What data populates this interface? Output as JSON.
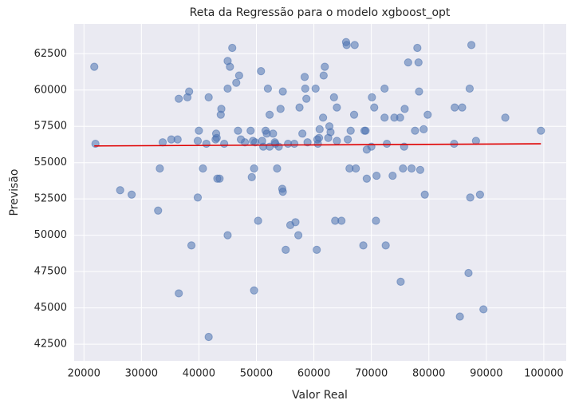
{
  "chart_data": {
    "type": "scatter",
    "title": "Reta da Regressão para o modelo xgboost_opt",
    "x_label": "Valor Real",
    "y_label": "Previsão",
    "color": "#4c72b0",
    "alpha": 0.55,
    "grid": true,
    "xlim": [
      18300,
      103900
    ],
    "ylim": [
      41350,
      64550
    ],
    "xticks": [
      20000,
      30000,
      40000,
      50000,
      60000,
      70000,
      80000,
      90000,
      100000
    ],
    "yticks": [
      42500,
      45000,
      47500,
      50000,
      52500,
      55000,
      57500,
      60000,
      62500
    ],
    "x": [
      21800,
      22000,
      26300,
      28300,
      32900,
      33200,
      33700,
      35200,
      36300,
      36500,
      36500,
      38000,
      38300,
      38700,
      39800,
      39800,
      40000,
      40700,
      41300,
      41700,
      41700,
      42900,
      43000,
      43100,
      43200,
      43600,
      43900,
      43800,
      44400,
      45000,
      45000,
      45000,
      45400,
      45800,
      46500,
      46800,
      47000,
      47300,
      48000,
      49000,
      49200,
      49400,
      49600,
      49600,
      49800,
      50300,
      50800,
      51000,
      51200,
      51600,
      51800,
      52000,
      52300,
      52300,
      52900,
      53200,
      53300,
      53600,
      53900,
      54200,
      54500,
      54600,
      54600,
      55100,
      55500,
      55900,
      56600,
      56800,
      57300,
      57500,
      58000,
      58400,
      58500,
      58700,
      58900,
      60300,
      60500,
      60600,
      60700,
      60900,
      61000,
      61600,
      61700,
      61900,
      62500,
      62700,
      62900,
      63500,
      63700,
      64000,
      64000,
      64800,
      65600,
      65700,
      65900,
      66200,
      66400,
      67100,
      67000,
      67300,
      68600,
      68800,
      69000,
      69200,
      69200,
      70000,
      70100,
      70500,
      70800,
      70900,
      72300,
      72300,
      72500,
      72700,
      73700,
      74000,
      75000,
      75100,
      75500,
      75700,
      75800,
      76400,
      77000,
      77600,
      78000,
      78200,
      78300,
      78500,
      79100,
      79300,
      79800,
      84400,
      84500,
      85400,
      85800,
      86900,
      87100,
      87200,
      87400,
      88200,
      88900,
      89500,
      93300,
      99500
    ],
    "values": [
      61600,
      56300,
      53100,
      52800,
      51700,
      54600,
      56400,
      56600,
      56600,
      46000,
      59400,
      59500,
      59900,
      49300,
      52600,
      56500,
      57200,
      54600,
      56300,
      59500,
      43000,
      56600,
      57000,
      56700,
      53900,
      53900,
      58700,
      58300,
      56300,
      62000,
      60100,
      50000,
      61600,
      62900,
      60500,
      57200,
      61000,
      56600,
      56400,
      57200,
      54000,
      56500,
      54600,
      46200,
      56400,
      51000,
      61300,
      56500,
      56100,
      57200,
      57000,
      60100,
      58300,
      56100,
      57000,
      56400,
      56300,
      54600,
      56100,
      58700,
      53200,
      53000,
      59900,
      49000,
      56300,
      50700,
      56300,
      50900,
      50000,
      58800,
      57000,
      60900,
      60100,
      59400,
      56400,
      60100,
      49000,
      56600,
      56300,
      56700,
      57300,
      58100,
      61000,
      61600,
      56700,
      57500,
      57100,
      59500,
      51000,
      58800,
      56500,
      51000,
      63300,
      63100,
      56600,
      54600,
      57200,
      63100,
      58300,
      54600,
      49300,
      57200,
      57200,
      53900,
      55900,
      56100,
      59500,
      58800,
      51000,
      54100,
      60100,
      58100,
      49300,
      56300,
      54100,
      58100,
      58100,
      46800,
      54600,
      56100,
      58700,
      61900,
      54600,
      57200,
      62900,
      61900,
      59900,
      54500,
      57300,
      52800,
      58300,
      56300,
      58800,
      44400,
      58800,
      47400,
      60100,
      52600,
      63100,
      56500,
      52800,
      44900,
      58100,
      57200
    ],
    "regression": {
      "type": "line",
      "color": "#e00000",
      "x": [
        21800,
        99500
      ],
      "values": [
        56150,
        56300
      ]
    }
  }
}
